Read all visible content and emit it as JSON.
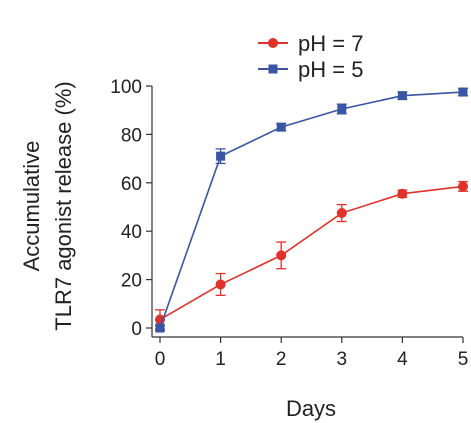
{
  "chart_data": {
    "type": "line",
    "title": "",
    "xlabel": "Days",
    "ylabel_line1": "Accumulative",
    "ylabel_line2": "TLR7 agonist release (%)",
    "x": [
      0,
      1,
      2,
      3,
      4,
      5
    ],
    "xticks": [
      "0",
      "1",
      "2",
      "3",
      "4",
      "5"
    ],
    "yticks": [
      "0",
      "20",
      "40",
      "60",
      "80",
      "100"
    ],
    "xlim": [
      0,
      5
    ],
    "ylim": [
      0,
      100
    ],
    "grid": false,
    "legend_position": "top-center",
    "series": [
      {
        "name": "pH = 7",
        "color": "#e0312b",
        "marker": "circle",
        "values": [
          3.5,
          18,
          30,
          47.5,
          55.5,
          58.5
        ],
        "errors": [
          4,
          4.5,
          5.5,
          3.5,
          1.5,
          2
        ]
      },
      {
        "name": "pH = 5",
        "color": "#3a55a4",
        "marker": "square",
        "values": [
          0,
          71,
          83,
          90.5,
          96,
          97.5
        ],
        "errors": [
          1,
          3,
          1.5,
          2,
          1.5,
          1.5
        ]
      }
    ]
  }
}
